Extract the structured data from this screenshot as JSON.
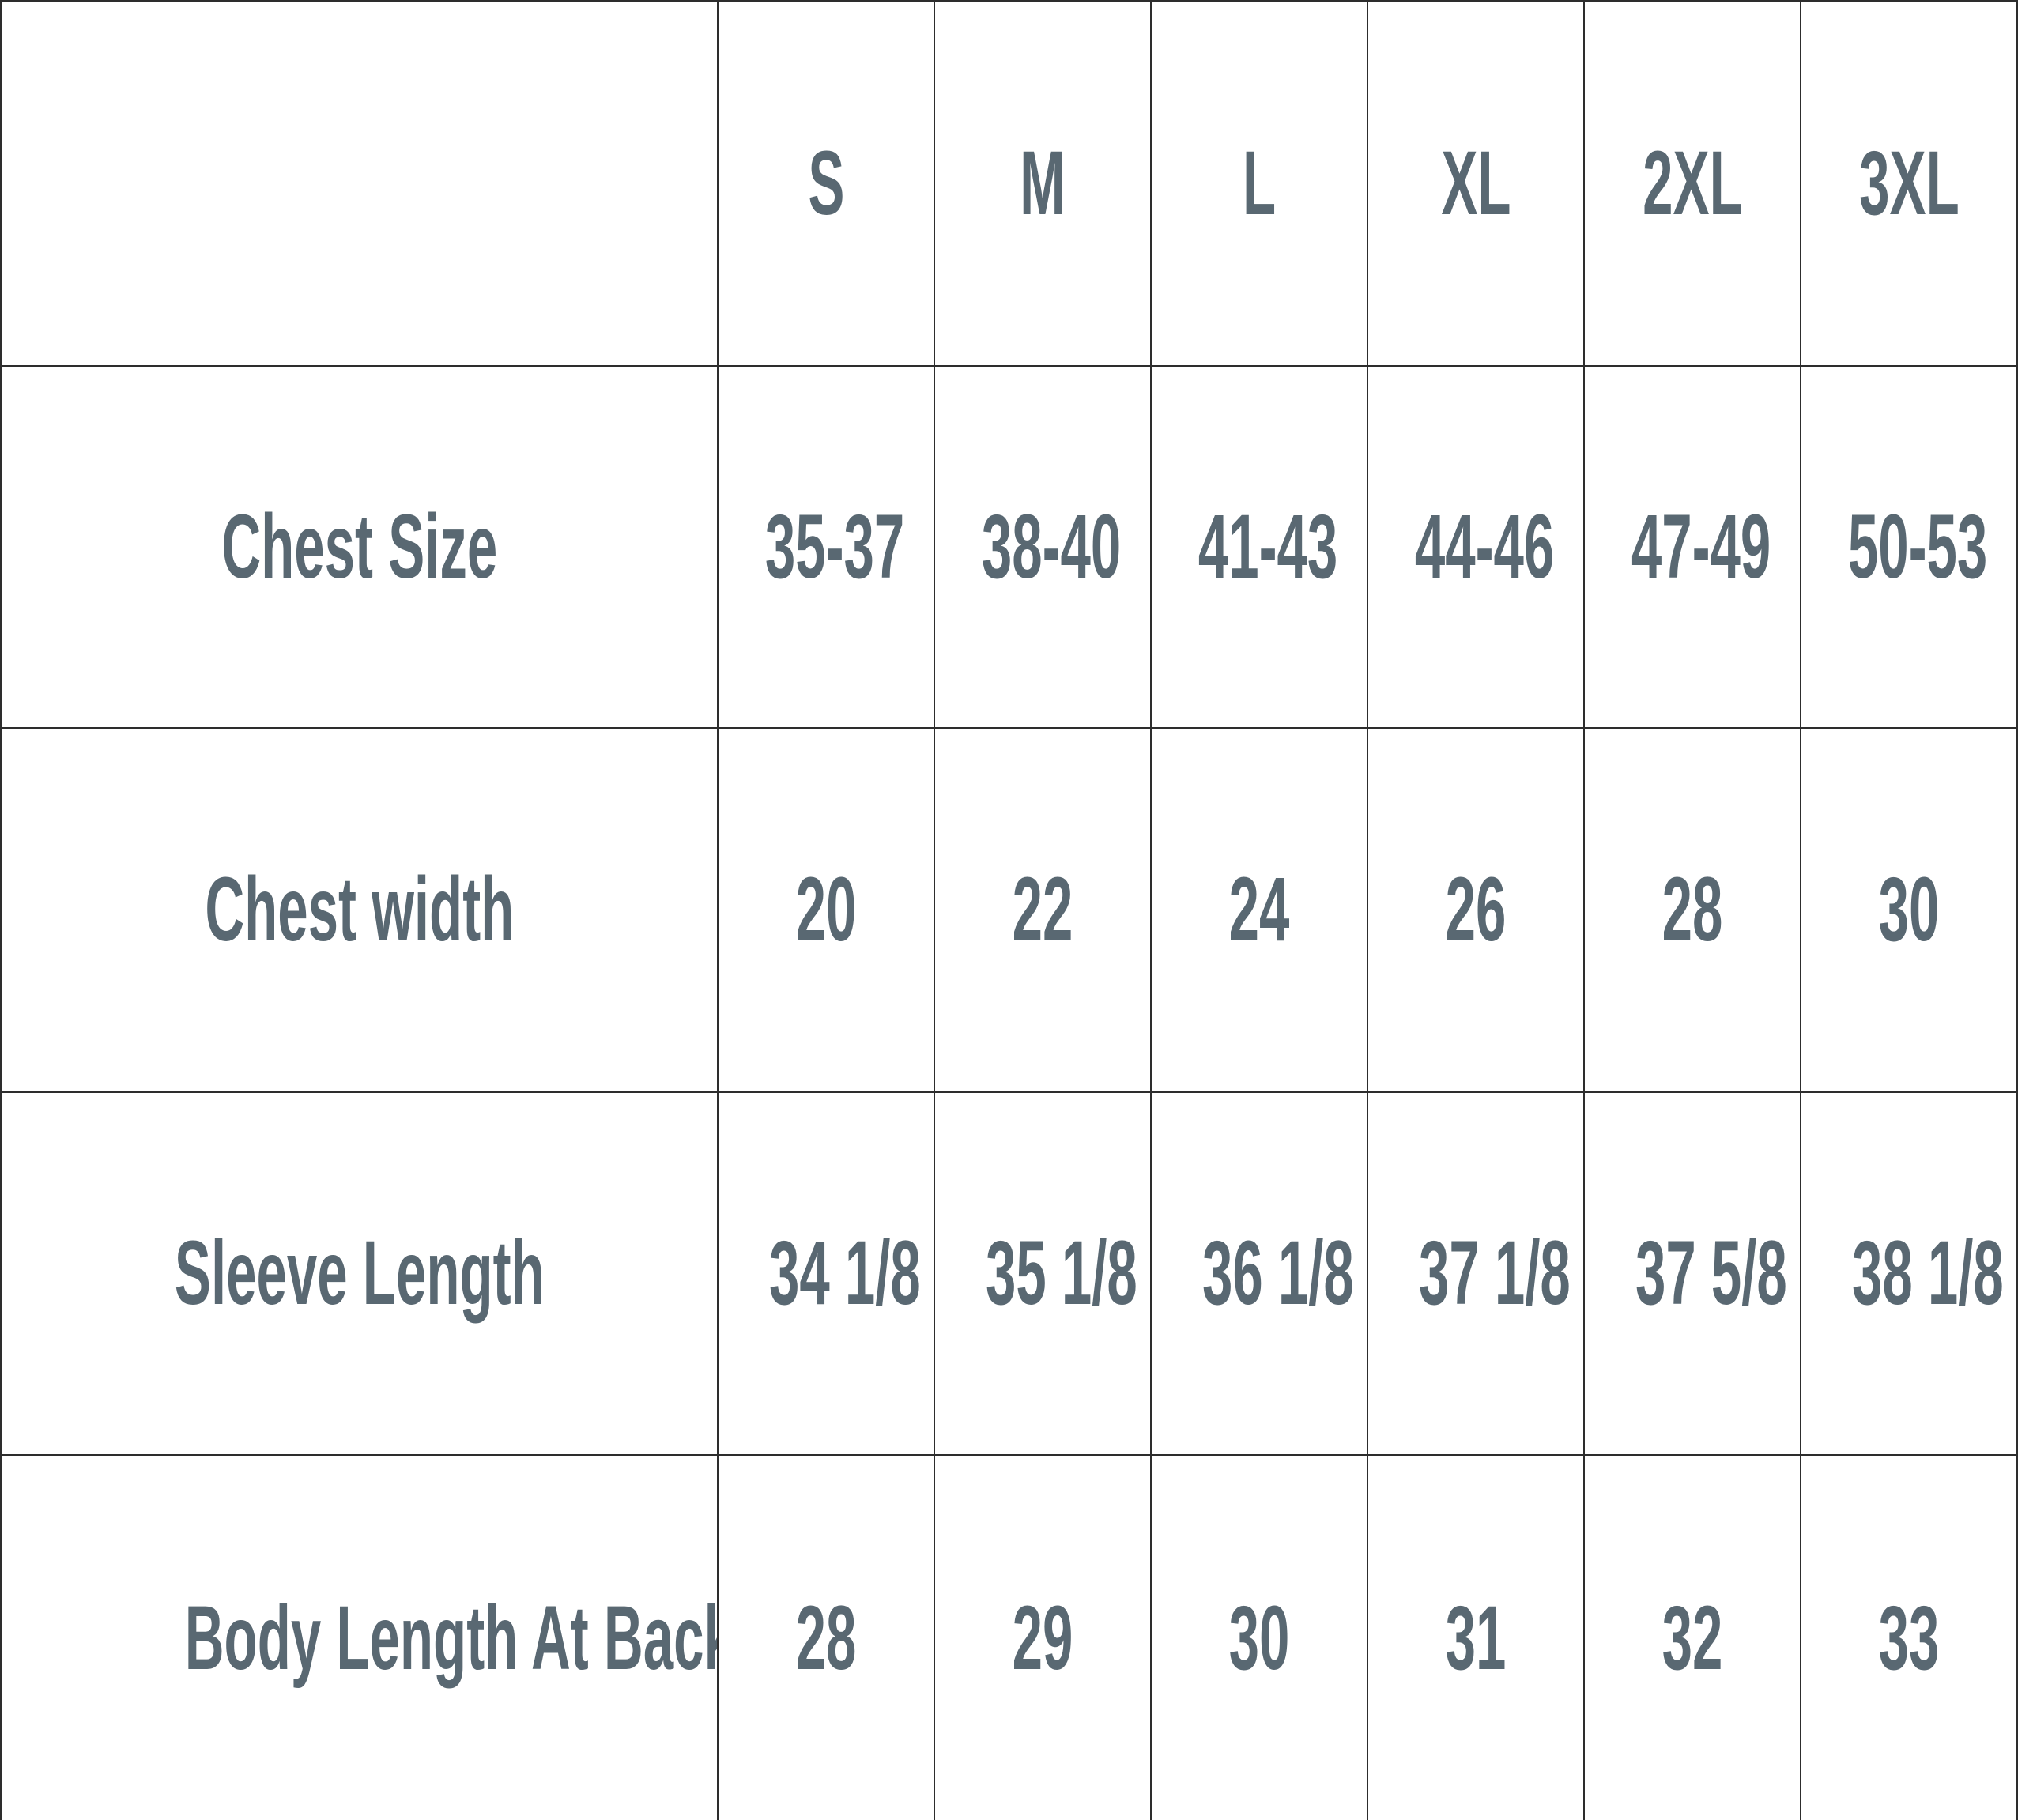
{
  "colors": {
    "text": "#596872",
    "grid": "#2d2d2d",
    "background": "#ffffff"
  },
  "chart_data": {
    "type": "table",
    "columns": [
      "",
      "S",
      "M",
      "L",
      "XL",
      "2XL",
      "3XL"
    ],
    "rows": [
      {
        "label": "Chest Size",
        "values": [
          "35-37",
          "38-40",
          "41-43",
          "44-46",
          "47-49",
          "50-53"
        ]
      },
      {
        "label": "Chest width",
        "values": [
          "20",
          "22",
          "24",
          "26",
          "28",
          "30"
        ]
      },
      {
        "label": "Sleeve Length",
        "values": [
          "34 1/8",
          "35 1/8",
          "36 1/8",
          "37 1/8",
          "37 5/8",
          "38 1/8"
        ]
      },
      {
        "label": "Body Length At Back",
        "values": [
          "28",
          "29",
          "30",
          "31",
          "32",
          "33"
        ]
      }
    ]
  }
}
